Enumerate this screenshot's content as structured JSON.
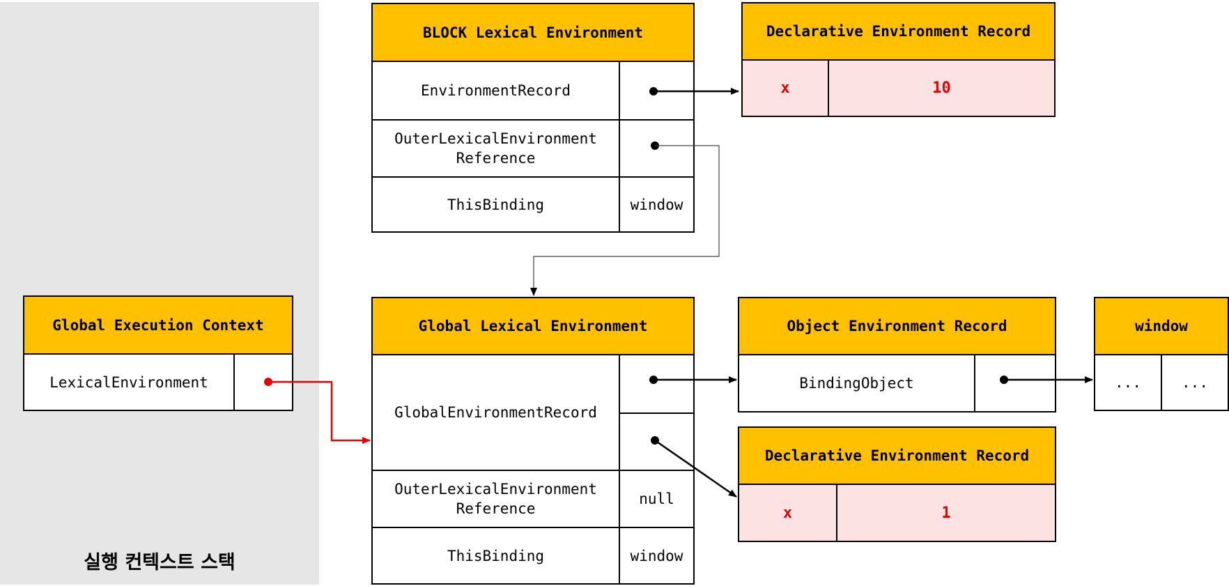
{
  "stack": {
    "label": "실행 컨텍스트 스택",
    "global_execution_context": {
      "title": "Global Execution Context",
      "row_label": "LexicalEnvironment"
    }
  },
  "block_lexical_environment": {
    "title": "BLOCK Lexical Environment",
    "rows": [
      {
        "label": "EnvironmentRecord",
        "value": ""
      },
      {
        "label_line1": "OuterLexicalEnvironment",
        "label_line2": "Reference",
        "value": ""
      },
      {
        "label": "ThisBinding",
        "value": "window"
      }
    ]
  },
  "block_declarative_record": {
    "title": "Declarative Environment Record",
    "name": "x",
    "value": "10"
  },
  "global_lexical_environment": {
    "title": "Global Lexical Environment",
    "rows": [
      {
        "label": "GlobalEnvironmentRecord"
      },
      {
        "label_line1": "OuterLexicalEnvironment",
        "label_line2": "Reference",
        "value": "null"
      },
      {
        "label": "ThisBinding",
        "value": "window"
      }
    ]
  },
  "object_environment_record": {
    "title": "Object Environment Record",
    "row_label": "BindingObject"
  },
  "window_object": {
    "title": "window",
    "cells": [
      "...",
      "..."
    ]
  },
  "global_declarative_record": {
    "title": "Declarative Environment Record",
    "name": "x",
    "value": "1"
  },
  "colors": {
    "header": "#FFC000",
    "record_cell": "#fde2e4",
    "highlight_arrow": "#e60000",
    "stack_background": "#e6e6e6"
  }
}
